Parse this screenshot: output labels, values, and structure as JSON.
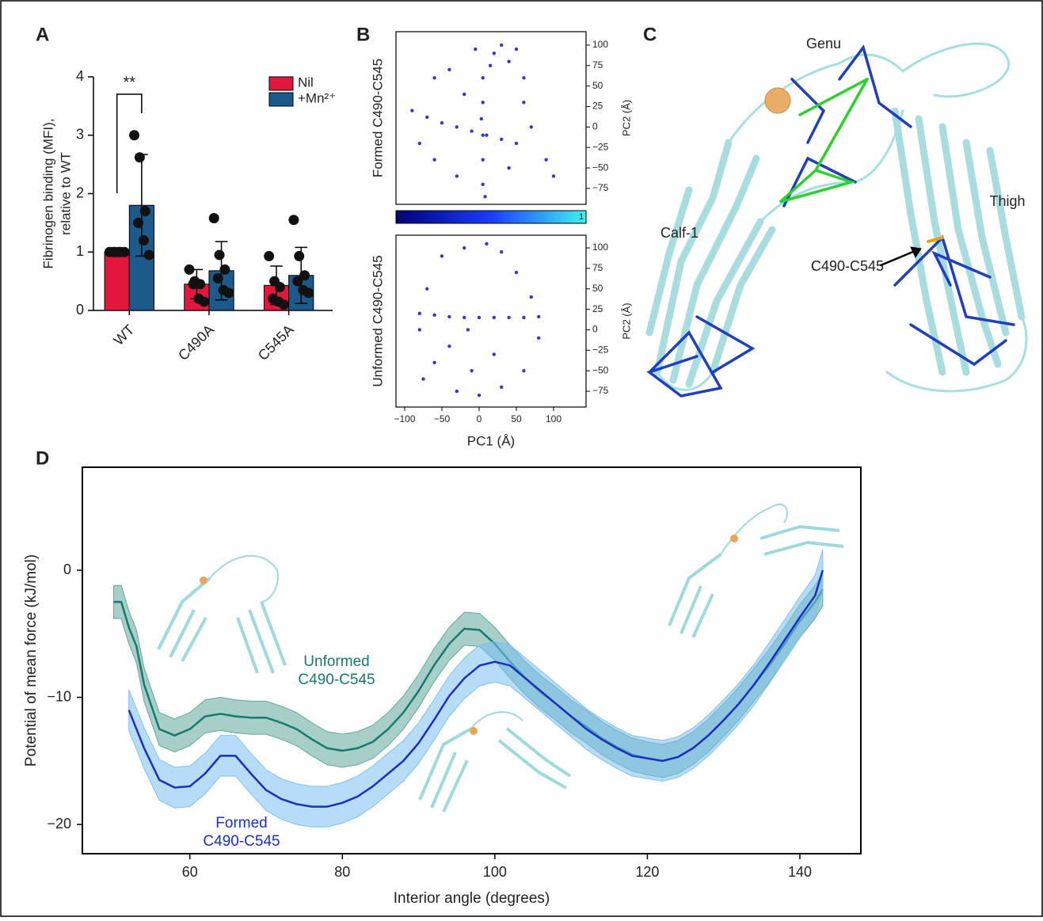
{
  "chart_data": [
    {
      "type": "bar",
      "panel": "A",
      "ylabel": [
        "Fibrinogen binding (MFI),",
        "relative to WT"
      ],
      "categories": [
        "WT",
        "C490A",
        "C545A"
      ],
      "series": [
        {
          "name": "Nil",
          "color": "#e3173e",
          "values": [
            1,
            0.45,
            0.43
          ],
          "errors": [
            0,
            0.25,
            0.33
          ],
          "points": [
            [
              1,
              1,
              1,
              1,
              1,
              1
            ],
            [
              0.7,
              0.5,
              0.45,
              0.45,
              0.2,
              0.15
            ],
            [
              0.93,
              0.5,
              0.4,
              0.2,
              0.15,
              0.1
            ]
          ]
        },
        {
          "name": "+Mn²⁺",
          "color": "#1d5a8c",
          "values": [
            1.8,
            0.68,
            0.6
          ],
          "errors": [
            0.87,
            0.5,
            0.48
          ],
          "points": [
            [
              3.0,
              2.62,
              1.7,
              1.5,
              1.2,
              0.95
            ],
            [
              1.58,
              0.95,
              0.7,
              0.55,
              0.35,
              0.3
            ],
            [
              1.55,
              0.93,
              0.6,
              0.5,
              0.35,
              0.3
            ]
          ]
        }
      ],
      "ylim": [
        0,
        4
      ],
      "yticks": [
        0,
        1,
        2,
        3,
        4
      ],
      "annotation": "**",
      "legend": "top-right"
    },
    {
      "type": "scatter",
      "panel": "B",
      "ylabel_left": "Formed C490-C545",
      "ylabel": "PC2 (Å)",
      "color": "#1414c8",
      "x": [
        -90,
        -70,
        -50,
        -30,
        -10,
        10,
        30,
        50,
        5,
        5,
        3,
        5,
        5,
        8,
        20,
        30,
        40,
        50,
        60,
        15,
        -60,
        -40,
        -20,
        -80,
        -60,
        -30,
        70,
        90,
        100,
        40,
        60,
        -5,
        5
      ],
      "values": [
        20,
        12,
        5,
        0,
        -5,
        -10,
        -15,
        -20,
        60,
        30,
        10,
        -40,
        -70,
        -85,
        90,
        100,
        80,
        95,
        60,
        75,
        60,
        70,
        40,
        -20,
        -40,
        -60,
        0,
        -40,
        -60,
        -50,
        30,
        95,
        -10
      ],
      "xlim": [
        -111.7,
        143.6
      ],
      "ylim": [
        -94.4,
        116.4
      ],
      "yticks": [
        100,
        75,
        50,
        25,
        0,
        {
          "value": -25,
          "label": "−25"
        },
        {
          "value": -50,
          "label": "−50"
        },
        {
          "value": -75,
          "label": "−75"
        }
      ],
      "colorbar": {
        "clim": [
          0,
          1
        ],
        "ticks": [
          0,
          1
        ],
        "colors": [
          "#00007a",
          "#1a3cff",
          "#3ff4f0"
        ]
      }
    },
    {
      "type": "scatter",
      "ylabel_left": "Unformed C490-C545",
      "ylabel": "PC2 (Å)",
      "xlabel": "PC1 (Å)",
      "color": "#1414c8",
      "x": [
        -80,
        -60,
        -40,
        -20,
        0,
        20,
        40,
        60,
        80,
        -50,
        -20,
        10,
        30,
        50,
        70,
        80,
        60,
        30,
        0,
        -30,
        -60,
        -80,
        -70,
        -40,
        20,
        -10,
        -75,
        -15
      ],
      "values": [
        20,
        18,
        16,
        15,
        15,
        15,
        15,
        15,
        16,
        90,
        100,
        105,
        95,
        70,
        40,
        -10,
        -50,
        -70,
        -80,
        -75,
        -40,
        0,
        50,
        -20,
        -30,
        -50,
        -60,
        0
      ],
      "xlim": [
        -111.7,
        143.6
      ],
      "ylim": [
        -94.3,
        115.5
      ],
      "xticks": [
        {
          "value": -100,
          "label": "−100"
        },
        {
          "value": -50,
          "label": "−50"
        },
        0,
        50,
        100
      ],
      "yticks": [
        100,
        75,
        50,
        25,
        0,
        {
          "value": -25,
          "label": "−25"
        },
        {
          "value": -50,
          "label": "−50"
        },
        {
          "value": -75,
          "label": "−75"
        }
      ]
    },
    {
      "type": "line",
      "panel": "D",
      "xlabel": "Interior angle (degrees)",
      "ylabel": "Potential of mean force (kJ/mol)",
      "x": [
        50,
        51,
        52,
        53,
        54,
        56,
        58,
        60,
        62,
        64,
        66,
        68,
        70,
        72,
        74,
        76,
        78,
        80,
        82,
        84,
        86,
        88,
        90,
        92,
        94,
        96,
        98,
        100,
        102,
        104,
        106,
        108,
        110,
        112,
        114,
        116,
        118,
        120,
        122,
        124,
        126,
        128,
        130,
        132,
        134,
        136,
        138,
        140,
        142,
        143
      ],
      "series": [
        {
          "name": "Unformed C490-C545",
          "color": "#167a6c",
          "band_color": "#5fa89b",
          "error": 1.3,
          "values": [
            -2.5,
            -2.5,
            -4.5,
            -6,
            -9,
            -12.5,
            -13,
            -12.5,
            -11.5,
            -11.3,
            -11.5,
            -11.6,
            -11.6,
            -12,
            -12.5,
            -13.3,
            -14,
            -14.2,
            -14,
            -13.5,
            -12.5,
            -11.2,
            -9.5,
            -7.5,
            -5.8,
            -4.6,
            -4.7,
            -5.8,
            -7.2,
            -8.5,
            -9.6,
            -10.5,
            -11.5,
            -12.3,
            -13.2,
            -13.9,
            -14.5,
            -14.8,
            -15,
            -14.7,
            -14,
            -13,
            -11.8,
            -10.5,
            -9,
            -7.5,
            -5.8,
            -4,
            -2.5,
            -1.5
          ]
        },
        {
          "name": "Formed C490-C545",
          "color": "#1a2fc0",
          "band_color": "#7cc0f2",
          "error": 1.6,
          "values": [
            null,
            null,
            -11,
            -12.5,
            -14,
            -16.5,
            -17.1,
            -17,
            -16,
            -14.6,
            -14.6,
            -16,
            -17.3,
            -18,
            -18.4,
            -18.6,
            -18.6,
            -18.3,
            -17.8,
            -17,
            -16,
            -15,
            -13.6,
            -11.8,
            -9.9,
            -8.5,
            -7.5,
            -7.2,
            -7.5,
            -8.5,
            -9.5,
            -10.5,
            -11.5,
            -12.5,
            -13.3,
            -14,
            -14.6,
            -14.8,
            -15,
            -14.7,
            -14,
            -13,
            -11.8,
            -10.5,
            -9,
            -7.3,
            -5.5,
            -3.7,
            -2,
            0
          ]
        }
      ],
      "xlim": [
        45.9,
        148
      ],
      "ylim": [
        -22.3,
        8.1
      ],
      "xticks": [
        60,
        80,
        100,
        120,
        140
      ],
      "yticks": [
        0,
        {
          "value": -10,
          "label": "−10"
        },
        {
          "value": -20,
          "label": "−20"
        }
      ]
    }
  ],
  "panel_c": {
    "panel": "C",
    "labels": [
      "Genu",
      "Thigh",
      "Calf-1",
      "C490-C545"
    ]
  }
}
